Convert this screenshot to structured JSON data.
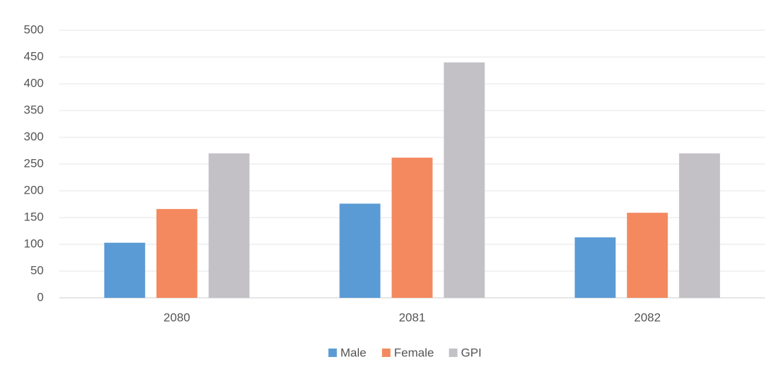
{
  "chart_data": {
    "type": "bar",
    "categories": [
      "2080",
      "2081",
      "2082"
    ],
    "series": [
      {
        "name": "Male",
        "color": "#5b9bd5",
        "values": [
          103,
          176,
          113
        ]
      },
      {
        "name": "Female",
        "color": "#f4895f",
        "values": [
          166,
          262,
          159
        ]
      },
      {
        "name": "GPI",
        "color": "#c3c1c6",
        "values": [
          270,
          440,
          270
        ]
      }
    ],
    "ylim": [
      0,
      500
    ],
    "yticks": [
      0,
      50,
      100,
      150,
      200,
      250,
      300,
      350,
      400,
      450,
      500
    ],
    "grid": true,
    "legend": "bottom"
  }
}
